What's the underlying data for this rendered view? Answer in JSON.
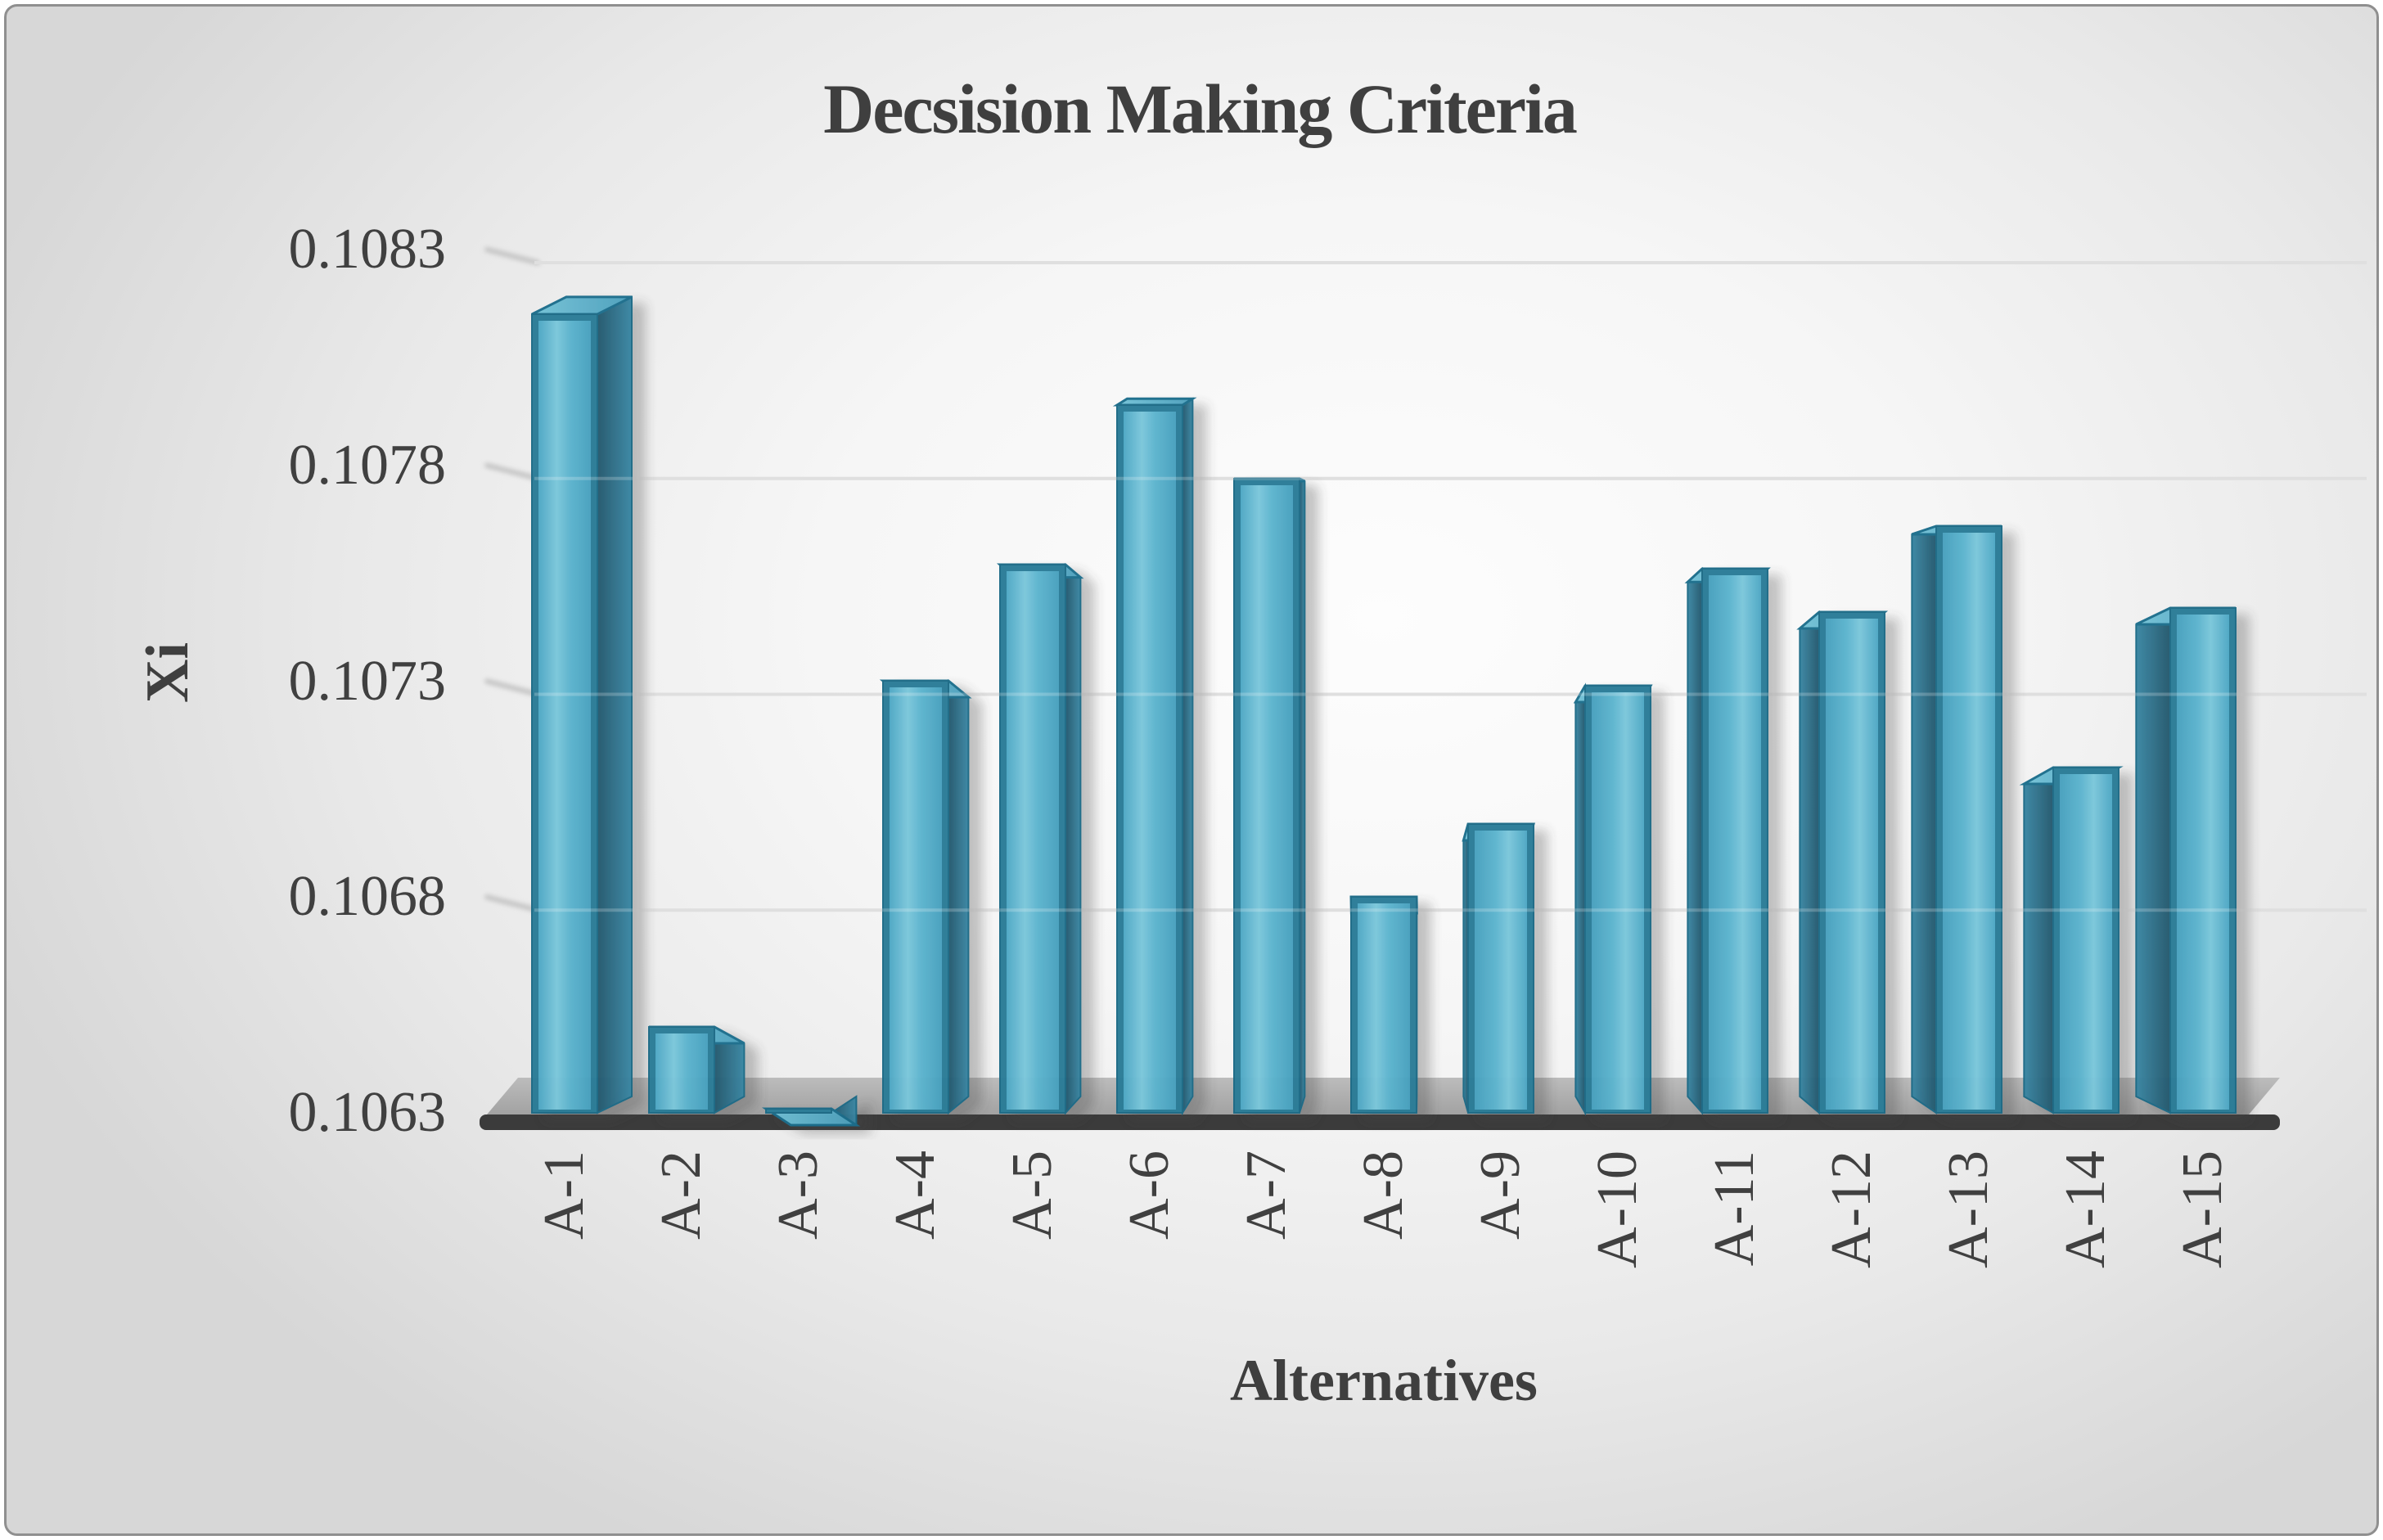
{
  "chart_data": {
    "type": "bar",
    "style": "3d-column",
    "title": "Decsision Making Criteria",
    "xlabel": "Alternatives",
    "ylabel": "Xi",
    "categories": [
      "A-1",
      "A-2",
      "A-3",
      "A-4",
      "A-5",
      "A-6",
      "A-7",
      "A-8",
      "A-9",
      "A-10",
      "A-11",
      "A-12",
      "A-13",
      "A-14",
      "A-15"
    ],
    "values": [
      0.10815,
      0.1065,
      0.10631,
      0.1073,
      0.10757,
      0.10794,
      0.10777,
      0.1068,
      0.10697,
      0.10729,
      0.10756,
      0.10746,
      0.10766,
      0.1071,
      0.10747
    ],
    "ylim": [
      0.1063,
      0.1083
    ],
    "ytick_step": 0.0005,
    "yticks": [
      "0.1083",
      "0.1078",
      "0.1073",
      "0.1068",
      "0.1063"
    ],
    "grid": true,
    "legend": false,
    "colors": {
      "bar_face": "#4BACC6",
      "bar_face_light": "#7bc7db",
      "bar_edge": "#25748f",
      "bar_side_dark": "#24586d",
      "bar_top": "#62bad2",
      "floor_top": "#adadad",
      "floor_front": "#3b3b3b",
      "gridline": "#d6d6d6",
      "grid_shadow": "#c2c2c2",
      "text": "#3f3f3f",
      "frame_border": "#8f8f8f"
    }
  }
}
